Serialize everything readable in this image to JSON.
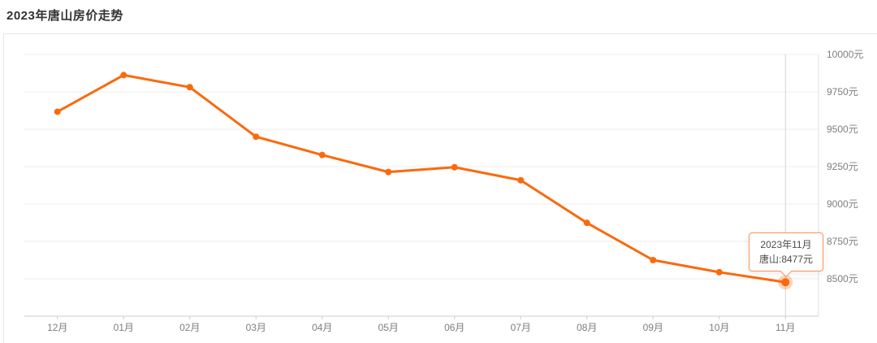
{
  "page_title": "2023年唐山房价走势",
  "chart_data": {
    "type": "line",
    "title": "2023年唐山房价走势",
    "categories": [
      "12月",
      "01月",
      "02月",
      "03月",
      "04月",
      "05月",
      "06月",
      "07月",
      "08月",
      "09月",
      "10月",
      "11月"
    ],
    "series": [
      {
        "name": "唐山",
        "values": [
          9617,
          9862,
          9781,
          9450,
          9328,
          9214,
          9246,
          9159,
          8874,
          8625,
          8544,
          8477
        ]
      }
    ],
    "ylim": [
      8250,
      10000
    ],
    "y_ticks": [
      {
        "value": 10000,
        "label": "10000元"
      },
      {
        "value": 9750,
        "label": "9750元"
      },
      {
        "value": 9500,
        "label": "9500元"
      },
      {
        "value": 9250,
        "label": "9250元"
      },
      {
        "value": 9000,
        "label": "9000元"
      },
      {
        "value": 8750,
        "label": "8750元"
      },
      {
        "value": 8500,
        "label": "8500元"
      }
    ],
    "grid": true,
    "legend_position": "none",
    "y_axis_side": "right",
    "highlighted_point": {
      "category_index": 11,
      "category": "11月",
      "value": 8477
    },
    "tooltip": {
      "line1": "2023年11月",
      "line2": "唐山:8477元"
    }
  },
  "colors": {
    "accent": "#fa6a0d",
    "accent_halo": "rgba(250,106,13,0.28)",
    "tooltip_border": "#f9935f",
    "grid_line": "#ececec",
    "plot_border": "#e0e0e0",
    "axis_line": "#cccccc",
    "axis_label": "#7e7e7e",
    "crosshair": "#d4d4d4",
    "title_text": "#333333",
    "card_border": "#e7e7e7"
  }
}
